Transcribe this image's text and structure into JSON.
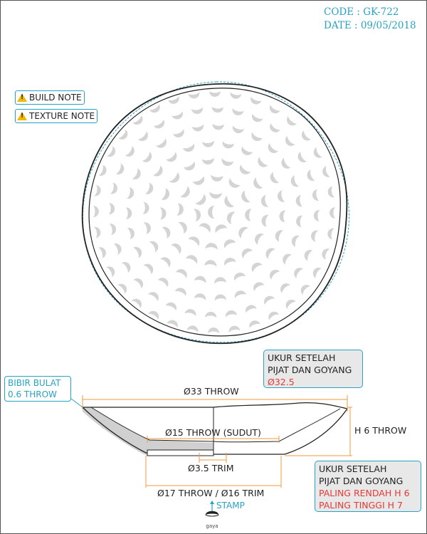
{
  "header": {
    "code": "CODE : GK-722",
    "date": "DATE : 09/05/2018"
  },
  "notes": [
    {
      "label": "BUILD NOTE",
      "icon": "warning-icon"
    },
    {
      "label": "TEXTURE NOTE",
      "icon": "warning-icon"
    }
  ],
  "callouts": {
    "top": {
      "line1": "UKUR SETELAH",
      "line2": "PIJAT DAN GOYANG",
      "value": "Ø32.5"
    },
    "bottom": {
      "line1": "UKUR SETELAH",
      "line2": "PIJAT DAN GOYANG",
      "low": "PALING RENDAH H 6",
      "high": "PALING TINGGI H 7"
    },
    "rim": {
      "line1": "BIBIR BULAT",
      "line2": "0.6 THROW"
    }
  },
  "dimensions": {
    "overall": "Ø33 THROW",
    "inner": "Ø15 THROW (SUDUT)",
    "height": "H 6 THROW",
    "trim_small": "Ø3.5 TRIM",
    "foot": "Ø17 THROW / Ø16 TRIM",
    "stamp": "STAMP"
  },
  "logo_text": "gaya",
  "colors": {
    "accent": "#29a3c4",
    "warning": "#e53935",
    "texture": "#d4d4d4"
  }
}
